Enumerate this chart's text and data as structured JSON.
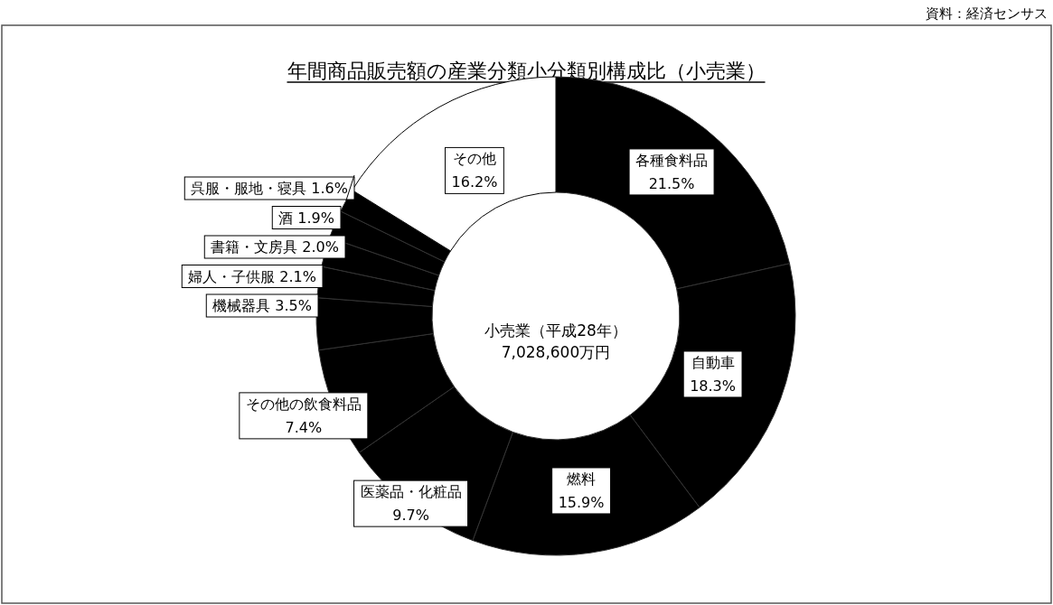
{
  "chart_data": {
    "type": "donut",
    "title": "年間商品販売額の産業分類小分類別構成比（小売業）",
    "categories": [
      "各種食料品",
      "自動車",
      "燃料",
      "医薬品・化粧品",
      "その他の飲食料品",
      "機械器具",
      "婦人・子供服",
      "書籍・文房具",
      "酒",
      "呉服・服地・寝具",
      "その他"
    ],
    "values": [
      21.5,
      18.3,
      15.9,
      9.7,
      7.4,
      3.5,
      2.1,
      2.0,
      1.9,
      1.6,
      16.2
    ],
    "colors": [
      "#000000",
      "#000000",
      "#000000",
      "#000000",
      "#000000",
      "#000000",
      "#000000",
      "#000000",
      "#000000",
      "#000000",
      "#ffffff"
    ],
    "value_labels": [
      "21.5%",
      "18.3%",
      "15.9%",
      "9.7%",
      "7.4%",
      "3.5%",
      "2.1%",
      "2.0%",
      "1.9%",
      "1.6%",
      "16.2%"
    ],
    "annotations": [
      "小売業（平成28年）",
      "7,028,600万円",
      "資料：経済センサス"
    ]
  }
}
